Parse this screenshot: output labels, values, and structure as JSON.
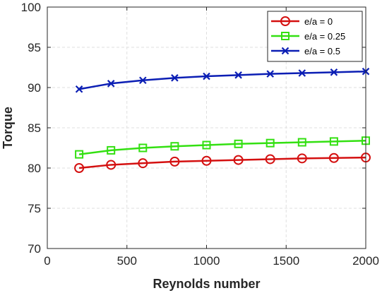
{
  "chart_data": {
    "type": "line",
    "title": "",
    "xlabel": "Reynolds number",
    "ylabel": "Torque",
    "xlim": [
      0,
      2000
    ],
    "ylim": [
      70,
      100
    ],
    "x_ticks": [
      0,
      500,
      1000,
      1500,
      2000
    ],
    "y_ticks": [
      70,
      75,
      80,
      85,
      90,
      95,
      100
    ],
    "grid": true,
    "legend_position": "top-right",
    "x": [
      200,
      400,
      600,
      800,
      1000,
      1200,
      1400,
      1600,
      1800,
      2000
    ],
    "series": [
      {
        "name": "e/a = 0",
        "color": "#d41010",
        "marker": "circle",
        "values": [
          80.0,
          80.4,
          80.6,
          80.8,
          80.9,
          81.0,
          81.1,
          81.2,
          81.25,
          81.3
        ]
      },
      {
        "name": "e/a = 0.25",
        "color": "#33e011",
        "marker": "square",
        "values": [
          81.7,
          82.2,
          82.5,
          82.7,
          82.85,
          83.0,
          83.1,
          83.2,
          83.3,
          83.4
        ]
      },
      {
        "name": "e/a = 0.5",
        "color": "#0b1eb4",
        "marker": "x",
        "values": [
          89.8,
          90.5,
          90.9,
          91.2,
          91.4,
          91.55,
          91.7,
          91.8,
          91.9,
          92.0
        ]
      }
    ]
  }
}
